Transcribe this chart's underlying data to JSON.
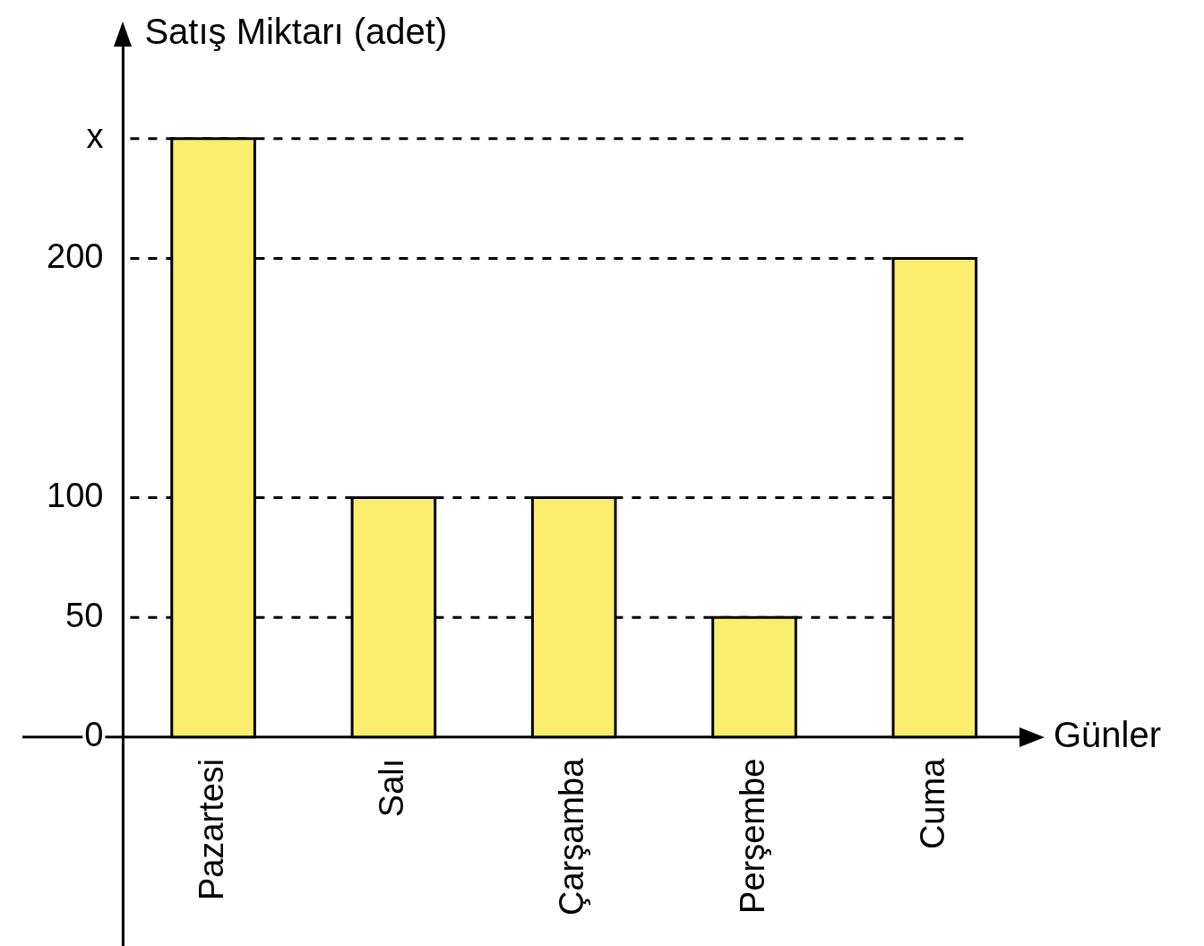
{
  "chart_data": {
    "type": "bar",
    "xlabel": "Günler",
    "ylabel": "Satış Miktarı (adet)",
    "categories": [
      "Pazartesi",
      "Salı",
      "Çarşamba",
      "Perşembe",
      "Cuma"
    ],
    "values": [
      250,
      100,
      100,
      50,
      200
    ],
    "color": "#fbee6e",
    "ylim": [
      0,
      290
    ],
    "yticks": [
      0,
      50,
      100,
      200,
      {
        "value": 250,
        "label": "x"
      }
    ],
    "ref_lines": [
      {
        "axis": "y",
        "value": 50,
        "line_style": "dashed",
        "color": "#000000"
      },
      {
        "axis": "y",
        "value": 100,
        "line_style": "dashed",
        "color": "#000000"
      },
      {
        "axis": "y",
        "value": 200,
        "line_style": "dashed",
        "color": "#000000"
      },
      {
        "axis": "y",
        "value": 250,
        "line_style": "dashed",
        "color": "#000000"
      }
    ],
    "grid": false,
    "legend": false
  }
}
